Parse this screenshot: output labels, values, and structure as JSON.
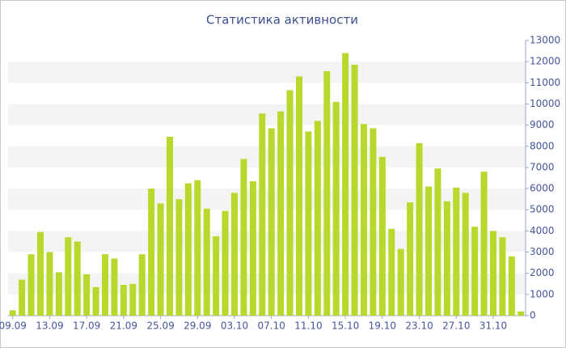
{
  "chart_data": {
    "type": "bar",
    "title": "Статистика активности",
    "categories": [
      "09.09",
      null,
      null,
      null,
      "13.09",
      null,
      null,
      null,
      "17.09",
      null,
      null,
      null,
      "21.09",
      null,
      null,
      null,
      "25.09",
      null,
      null,
      null,
      "29.09",
      null,
      null,
      null,
      "03.10",
      null,
      null,
      null,
      "07.10",
      null,
      null,
      null,
      "11.10",
      null,
      null,
      null,
      "15.10",
      null,
      null,
      null,
      "19.10",
      null,
      null,
      null,
      "23.10",
      null,
      null,
      null,
      "27.10",
      null,
      null,
      null,
      "31.10",
      null,
      null,
      null
    ],
    "values": [
      250,
      1700,
      2900,
      3950,
      3000,
      2050,
      3700,
      3500,
      1950,
      1350,
      2900,
      2700,
      1450,
      1500,
      2900,
      6000,
      5300,
      8450,
      5500,
      6250,
      6400,
      5050,
      3750,
      4950,
      5800,
      7400,
      6350,
      9550,
      8850,
      9650,
      10650,
      11300,
      8700,
      9200,
      11550,
      10100,
      12400,
      11850,
      9050,
      8850,
      7500,
      4100,
      3150,
      5350,
      8150,
      6100,
      6950,
      5400,
      6050,
      5800,
      4200,
      6800,
      4000,
      3700,
      2800,
      200
    ],
    "color": "#b8d82b",
    "ylim": [
      0,
      13000
    ],
    "yticks": [
      0,
      1000,
      2000,
      3000,
      4000,
      5000,
      6000,
      7000,
      8000,
      9000,
      10000,
      11000,
      12000,
      13000
    ],
    "grid": "bands"
  }
}
